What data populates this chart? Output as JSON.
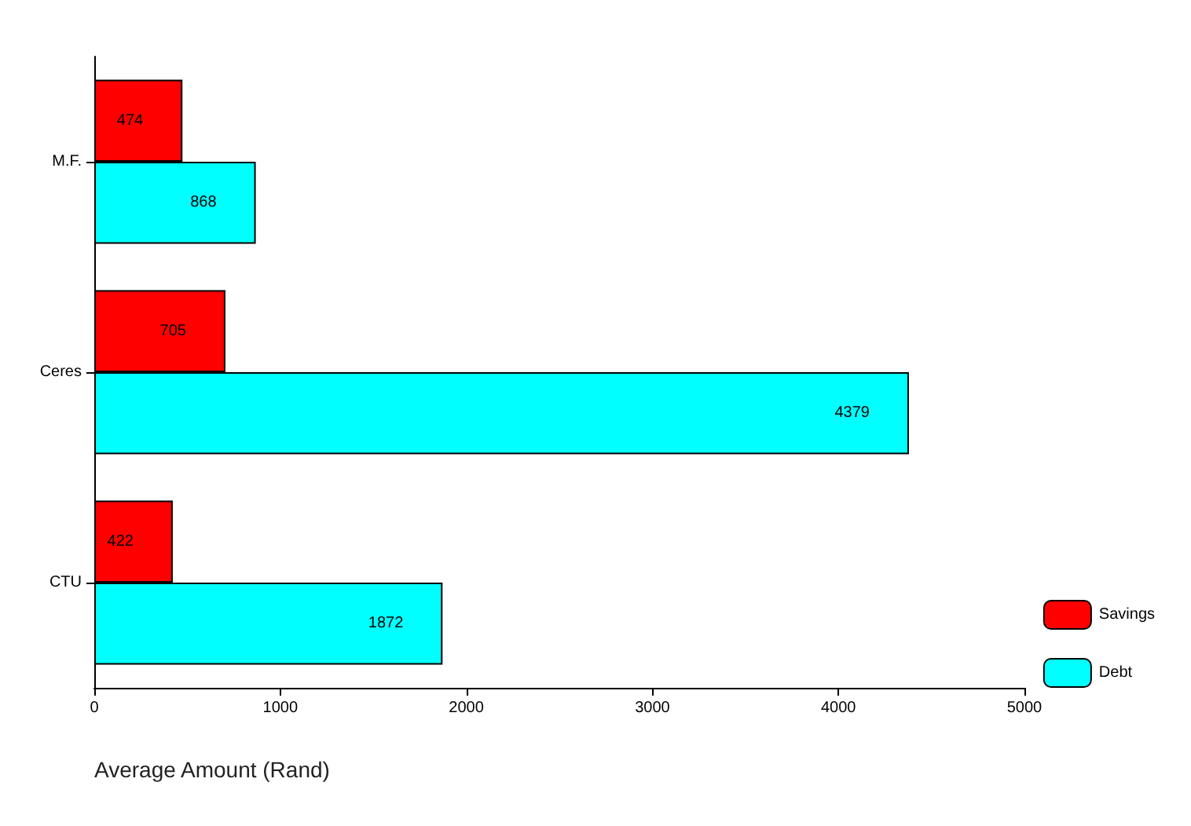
{
  "chart_data": {
    "type": "bar",
    "orientation": "horizontal",
    "xlabel": "Average Amount (Rand)",
    "categories": [
      "M.F.",
      "Ceres",
      "CTU"
    ],
    "series": [
      {
        "name": "Savings",
        "color": "#ff0000",
        "values": [
          474,
          705,
          422
        ]
      },
      {
        "name": "Debt",
        "color": "#00ffff",
        "values": [
          868,
          4379,
          1872
        ]
      }
    ],
    "xlim": [
      0,
      5000
    ],
    "xticks": [
      0,
      1000,
      2000,
      3000,
      4000,
      5000
    ],
    "data_labels": true,
    "grid": false,
    "legend": "bottom right"
  }
}
